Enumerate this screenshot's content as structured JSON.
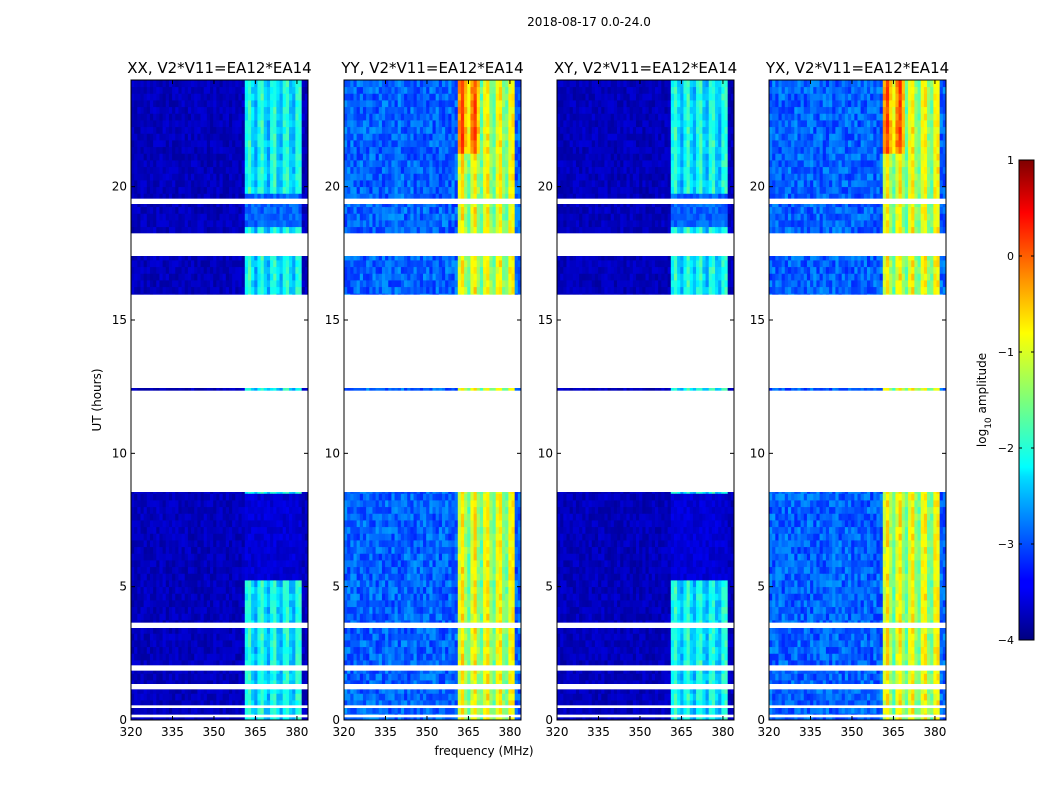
{
  "figure_title": "2018-08-17 0.0-24.0",
  "chart_data": {
    "type": "heatmap",
    "title": "2018-08-17 0.0-24.0",
    "xlabel": "frequency (MHz)",
    "ylabel": "UT (hours)",
    "xlim": [
      320,
      384
    ],
    "ylim": [
      0,
      24
    ],
    "xticks": [
      320,
      335,
      350,
      365,
      380
    ],
    "yticks": [
      0,
      5,
      10,
      15,
      20
    ],
    "panels": [
      {
        "title": "XX, V2*V11=EA12*EA14",
        "intensity": "low"
      },
      {
        "title": "YY, V2*V11=EA12*EA14",
        "intensity": "high"
      },
      {
        "title": "XY, V2*V11=EA12*EA14",
        "intensity": "low"
      },
      {
        "title": "YX, V2*V11=EA12*EA14",
        "intensity": "high"
      }
    ],
    "rfi_band_mhz": [
      361,
      381
    ],
    "data_gaps_hours": [
      [
        0.1,
        0.2
      ],
      [
        0.45,
        0.55
      ],
      [
        1.15,
        1.35
      ],
      [
        1.85,
        2.05
      ],
      [
        3.45,
        3.65
      ],
      [
        8.55,
        12.35
      ],
      [
        12.45,
        15.95
      ],
      [
        17.4,
        18.25
      ],
      [
        19.35,
        19.55
      ]
    ],
    "colorbar": {
      "label": "log10 amplitude",
      "label_main": "log",
      "label_sub": "10",
      "label_rest": " amplitude",
      "range": [
        -4,
        1
      ],
      "ticks": [
        -4,
        -3,
        -2,
        -1,
        0,
        1
      ],
      "tick_labels": [
        "−4",
        "−3",
        "−2",
        "−1",
        "0",
        "1"
      ]
    }
  }
}
